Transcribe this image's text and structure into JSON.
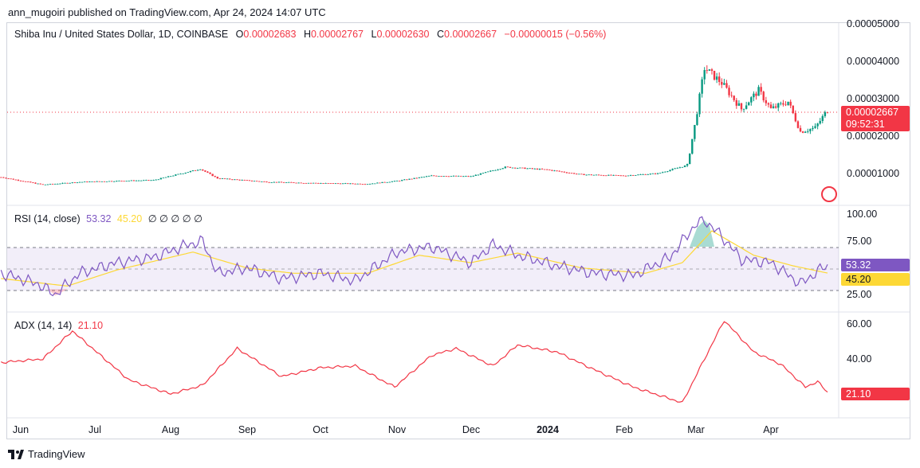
{
  "publisher": "ann_mugoiri published on TradingView.com, Apr 24, 2024 14:07 UTC",
  "brand": "TradingView",
  "main_legend": {
    "symbol": "Shiba Inu / United States Dollar, 1D, COINBASE",
    "o_label": "O",
    "o": "0.00002683",
    "h_label": "H",
    "h": "0.00002767",
    "l_label": "L",
    "l": "0.00002630",
    "c_label": "C",
    "c": "0.00002667",
    "change": "−0.00000015 (−0.56%)"
  },
  "rsi_legend": {
    "title": "RSI (14, close)",
    "rsi": "53.32",
    "ma": "45.20",
    "extra": "∅ ∅ ∅ ∅ ∅"
  },
  "adx_legend": {
    "title": "ADX (14, 14)",
    "value": "21.10"
  },
  "price_axis": [
    "0.00005000",
    "0.00004000",
    "0.00003000",
    "0.00002000",
    "0.00001000"
  ],
  "price_tag": {
    "price": "0.00002667",
    "countdown": "09:52:31"
  },
  "rsi_axis": [
    "100.00",
    "75.00",
    "25.00"
  ],
  "rsi_tags": {
    "rsi": "53.32",
    "ma": "45.20"
  },
  "adx_axis": [
    "60.00",
    "40.00"
  ],
  "adx_tag": "21.10",
  "x_axis": [
    "Jun",
    "Jul",
    "Aug",
    "Sep",
    "Oct",
    "Nov",
    "Dec",
    "2024",
    "Feb",
    "Mar",
    "Apr"
  ],
  "colors": {
    "up": "#089981",
    "down": "#f23645",
    "rsi": "#7e57c2",
    "rsi_ma": "#fdd835",
    "adx": "#f23645"
  },
  "chart_data": [
    {
      "type": "candlestick",
      "title": "Shiba Inu / United States Dollar, 1D, COINBASE",
      "ylim": [
        5e-06,
        5e-05
      ],
      "x_labels": [
        "Jun",
        "Jul",
        "Aug",
        "Sep",
        "Oct",
        "Nov",
        "Dec",
        "2024",
        "Feb",
        "Mar",
        "Apr"
      ],
      "approx_close_series": [
        [
          "2023-05-24",
          8.8e-06
        ],
        [
          "2023-06-10",
          6.8e-06
        ],
        [
          "2023-06-25",
          7.5e-06
        ],
        [
          "2023-07-10",
          7.8e-06
        ],
        [
          "2023-07-25",
          8e-06
        ],
        [
          "2023-08-13",
          1.1e-05
        ],
        [
          "2023-08-20",
          8.5e-06
        ],
        [
          "2023-09-10",
          7.5e-06
        ],
        [
          "2023-10-01",
          7.2e-06
        ],
        [
          "2023-10-20",
          7e-06
        ],
        [
          "2023-11-01",
          7.8e-06
        ],
        [
          "2023-11-15",
          9.2e-06
        ],
        [
          "2023-12-01",
          9e-06
        ],
        [
          "2023-12-15",
          1.15e-05
        ],
        [
          "2024-01-01",
          1.08e-05
        ],
        [
          "2024-01-15",
          9.5e-06
        ],
        [
          "2024-02-01",
          9.2e-06
        ],
        [
          "2024-02-15",
          9.8e-06
        ],
        [
          "2024-02-27",
          1.2e-05
        ],
        [
          "2024-03-01",
          2.25e-05
        ],
        [
          "2024-03-05",
          3.8e-05
        ],
        [
          "2024-03-12",
          3.4e-05
        ],
        [
          "2024-03-20",
          2.7e-05
        ],
        [
          "2024-03-27",
          3.2e-05
        ],
        [
          "2024-04-01",
          2.7e-05
        ],
        [
          "2024-04-08",
          2.9e-05
        ],
        [
          "2024-04-13",
          2.1e-05
        ],
        [
          "2024-04-19",
          2.2e-05
        ],
        [
          "2024-04-24",
          2.67e-05
        ]
      ],
      "last": 2.667e-05
    },
    {
      "type": "line",
      "title": "RSI (14, close)",
      "ylim": [
        15,
        100
      ],
      "bands": [
        30,
        50,
        70
      ],
      "series": [
        {
          "name": "RSI",
          "last": 53.32,
          "points": [
            [
              "2023-05-24",
              45
            ],
            [
              "2023-06-08",
              35
            ],
            [
              "2023-06-15",
              25
            ],
            [
              "2023-06-25",
              45
            ],
            [
              "2023-07-10",
              55
            ],
            [
              "2023-07-25",
              60
            ],
            [
              "2023-08-08",
              72
            ],
            [
              "2023-08-14",
              75
            ],
            [
              "2023-08-20",
              45
            ],
            [
              "2023-09-01",
              50
            ],
            [
              "2023-09-15",
              40
            ],
            [
              "2023-10-01",
              45
            ],
            [
              "2023-10-15",
              38
            ],
            [
              "2023-11-01",
              65
            ],
            [
              "2023-11-15",
              70
            ],
            [
              "2023-12-01",
              55
            ],
            [
              "2023-12-10",
              72
            ],
            [
              "2023-12-20",
              62
            ],
            [
              "2024-01-05",
              52
            ],
            [
              "2024-01-20",
              45
            ],
            [
              "2024-02-05",
              43
            ],
            [
              "2024-02-20",
              60
            ],
            [
              "2024-03-01",
              90
            ],
            [
              "2024-03-05",
              95
            ],
            [
              "2024-03-12",
              80
            ],
            [
              "2024-03-20",
              58
            ],
            [
              "2024-04-01",
              55
            ],
            [
              "2024-04-13",
              35
            ],
            [
              "2024-04-24",
              53.32
            ]
          ]
        },
        {
          "name": "RSI-based MA",
          "last": 45.2,
          "points": [
            [
              "2023-05-24",
              40
            ],
            [
              "2023-06-20",
              33
            ],
            [
              "2023-07-10",
              48
            ],
            [
              "2023-08-10",
              65
            ],
            [
              "2023-09-01",
              50
            ],
            [
              "2023-09-20",
              45
            ],
            [
              "2023-10-20",
              45
            ],
            [
              "2023-11-10",
              62
            ],
            [
              "2023-12-01",
              55
            ],
            [
              "2023-12-20",
              64
            ],
            [
              "2024-01-15",
              50
            ],
            [
              "2024-02-10",
              45
            ],
            [
              "2024-02-25",
              55
            ],
            [
              "2024-03-08",
              85
            ],
            [
              "2024-03-25",
              62
            ],
            [
              "2024-04-10",
              52
            ],
            [
              "2024-04-24",
              45.2
            ]
          ]
        }
      ]
    },
    {
      "type": "line",
      "title": "ADX (14, 14)",
      "ylim": [
        10,
        65
      ],
      "series": [
        {
          "name": "ADX",
          "last": 21.1,
          "points": [
            [
              "2023-05-24",
              38
            ],
            [
              "2023-06-10",
              40
            ],
            [
              "2023-06-22",
              56
            ],
            [
              "2023-07-15",
              28
            ],
            [
              "2023-08-01",
              20
            ],
            [
              "2023-08-14",
              25
            ],
            [
              "2023-08-28",
              46
            ],
            [
              "2023-09-15",
              30
            ],
            [
              "2023-10-01",
              35
            ],
            [
              "2023-10-15",
              36
            ],
            [
              "2023-10-31",
              24
            ],
            [
              "2023-11-15",
              42
            ],
            [
              "2023-11-25",
              46
            ],
            [
              "2023-12-10",
              36
            ],
            [
              "2023-12-20",
              48
            ],
            [
              "2024-01-05",
              44
            ],
            [
              "2024-01-20",
              34
            ],
            [
              "2024-02-05",
              24
            ],
            [
              "2024-02-25",
              15
            ],
            [
              "2024-03-05",
              40
            ],
            [
              "2024-03-13",
              62
            ],
            [
              "2024-03-25",
              44
            ],
            [
              "2024-04-05",
              37
            ],
            [
              "2024-04-15",
              24
            ],
            [
              "2024-04-20",
              27
            ],
            [
              "2024-04-24",
              21.1
            ]
          ]
        }
      ]
    }
  ]
}
